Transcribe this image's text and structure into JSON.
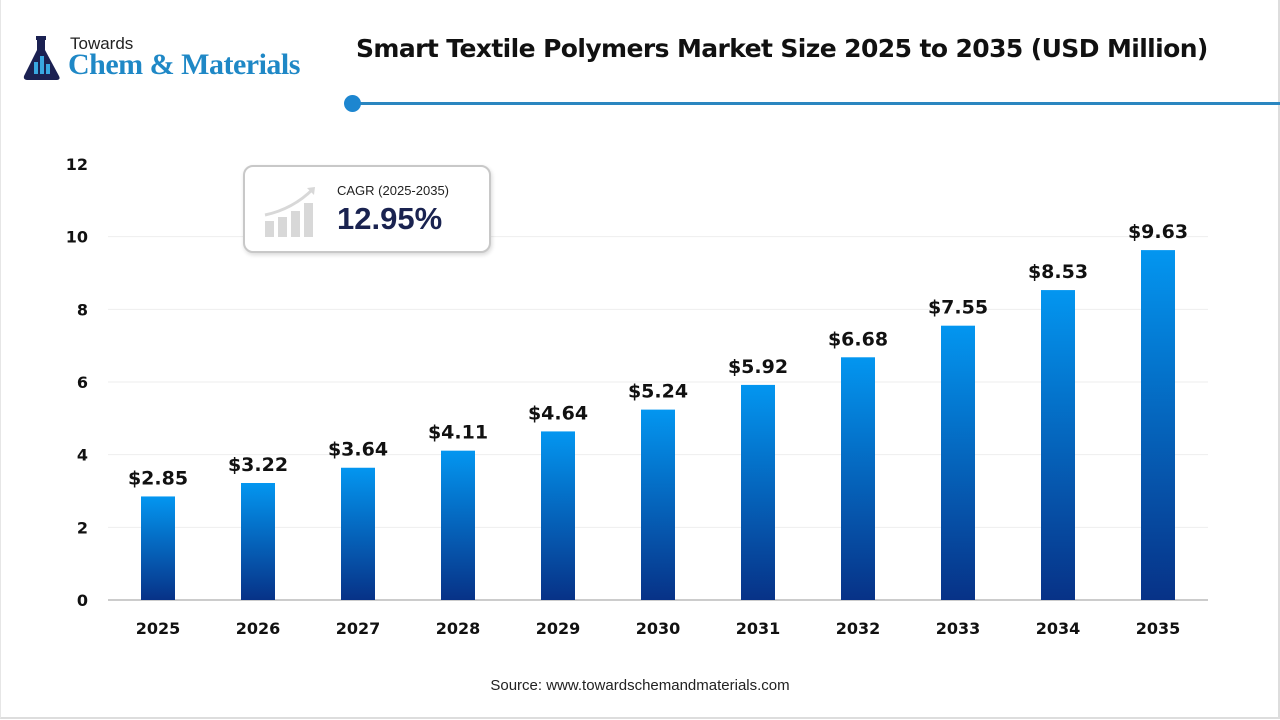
{
  "logo": {
    "line1": "Towards",
    "line2": "Chem & Materials"
  },
  "chart_data": {
    "type": "bar",
    "title": "Smart Textile Polymers Market Size 2025 to 2035 (USD Million)",
    "categories": [
      "2025",
      "2026",
      "2027",
      "2028",
      "2029",
      "2030",
      "2031",
      "2032",
      "2033",
      "2034",
      "2035"
    ],
    "values": [
      2.85,
      3.22,
      3.64,
      4.11,
      4.64,
      5.24,
      5.92,
      6.68,
      7.55,
      8.53,
      9.63
    ],
    "data_labels": [
      "$2.85",
      "$3.22",
      "$3.64",
      "$4.11",
      "$4.64",
      "$5.24",
      "$5.92",
      "$6.68",
      "$7.55",
      "$8.53",
      "$9.63"
    ],
    "xlabel": "",
    "ylabel": "",
    "ylim": [
      0,
      12
    ],
    "yticks": [
      0,
      2,
      4,
      6,
      8,
      10,
      12
    ],
    "grid": true,
    "bar_gradient": {
      "top": "#0396f0",
      "bottom": "#073287"
    },
    "annotation": {
      "label": "CAGR (2025-2035)",
      "value": "12.95%"
    }
  },
  "source": "Source: www.towardschemandmaterials.com"
}
